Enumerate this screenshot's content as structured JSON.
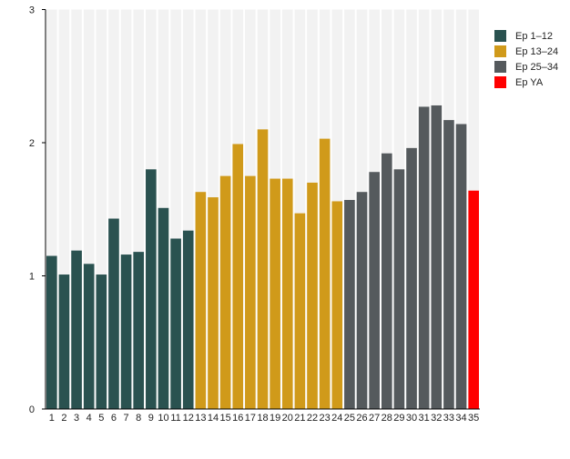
{
  "chart_data": {
    "type": "bar",
    "categories": [
      "1",
      "2",
      "3",
      "4",
      "5",
      "6",
      "7",
      "8",
      "9",
      "10",
      "11",
      "12",
      "13",
      "14",
      "15",
      "16",
      "17",
      "18",
      "19",
      "20",
      "21",
      "22",
      "23",
      "24",
      "25",
      "26",
      "27",
      "28",
      "29",
      "30",
      "31",
      "32",
      "33",
      "34",
      "35"
    ],
    "values": [
      1.15,
      1.01,
      1.19,
      1.09,
      1.01,
      1.43,
      1.16,
      1.18,
      1.8,
      1.51,
      1.28,
      1.34,
      1.63,
      1.59,
      1.75,
      1.99,
      1.75,
      2.1,
      1.73,
      1.73,
      1.47,
      1.7,
      2.03,
      1.56,
      1.57,
      1.63,
      1.78,
      1.92,
      1.8,
      1.96,
      2.27,
      2.28,
      2.17,
      2.14,
      1.64
    ],
    "groups": [
      0,
      0,
      0,
      0,
      0,
      0,
      0,
      0,
      0,
      0,
      0,
      0,
      1,
      1,
      1,
      1,
      1,
      1,
      1,
      1,
      1,
      1,
      1,
      1,
      2,
      2,
      2,
      2,
      2,
      2,
      2,
      2,
      2,
      2,
      3
    ],
    "legend": [
      {
        "name": "Ep 1–12",
        "color": "#2a5250"
      },
      {
        "name": "Ep 13–24",
        "color": "#d09a1a"
      },
      {
        "name": "Ep 25–34",
        "color": "#555a5d"
      },
      {
        "name": "Ep YA",
        "color": "#ff0000"
      }
    ],
    "legend_position": "right",
    "yticks": [
      "0",
      "1",
      "2",
      "3"
    ],
    "ylim": [
      0,
      3
    ],
    "title": "",
    "xlabel": "",
    "ylabel": "",
    "grid": false,
    "band_color": "#f2f2f2"
  }
}
